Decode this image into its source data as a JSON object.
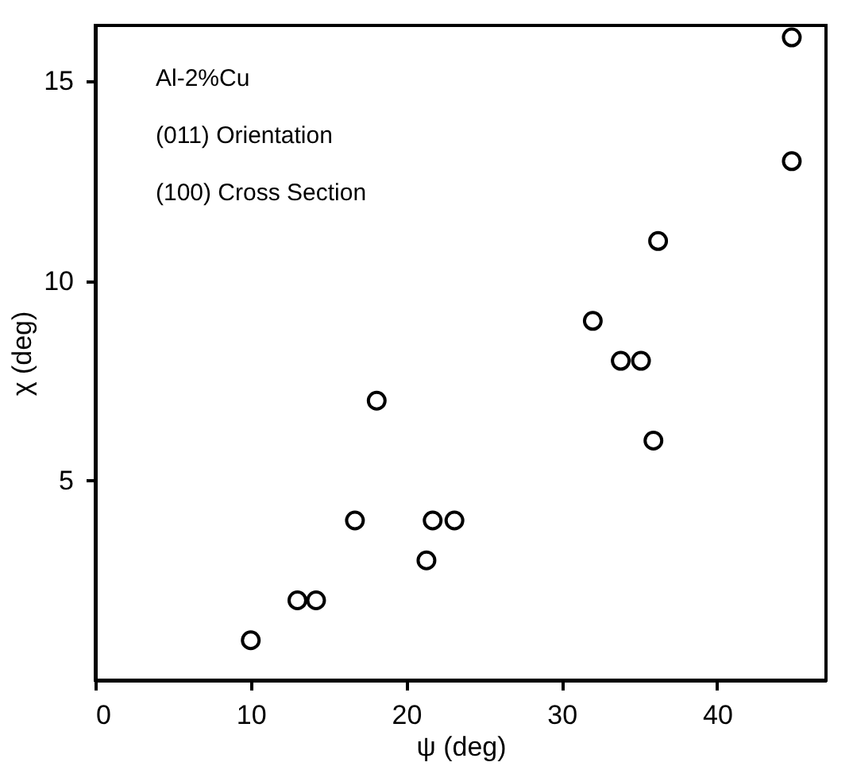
{
  "chart_data": {
    "type": "scatter",
    "xlabel": "ψ  (deg)",
    "ylabel": "χ  (deg)",
    "annotations": [
      "Al-2%Cu",
      "(011) Orientation",
      "(100) Cross Section"
    ],
    "x": [
      10,
      13,
      14.2,
      16.7,
      18.1,
      21.3,
      21.7,
      23.1,
      32,
      33.8,
      35.1,
      35.9,
      36.2,
      44.8,
      44.8
    ],
    "series": [
      {
        "color": "#000000",
        "values": [
          1,
          2,
          2,
          4,
          7,
          3,
          4,
          4,
          9,
          8,
          8,
          6,
          11,
          16.1,
          13
        ]
      }
    ],
    "xlim": [
      0,
      47
    ],
    "xticks": [
      0,
      10,
      20,
      30,
      40
    ],
    "ylim": [
      0,
      16.4
    ],
    "yticks": [
      5,
      10,
      15
    ],
    "grid": false,
    "marker": "circle"
  }
}
